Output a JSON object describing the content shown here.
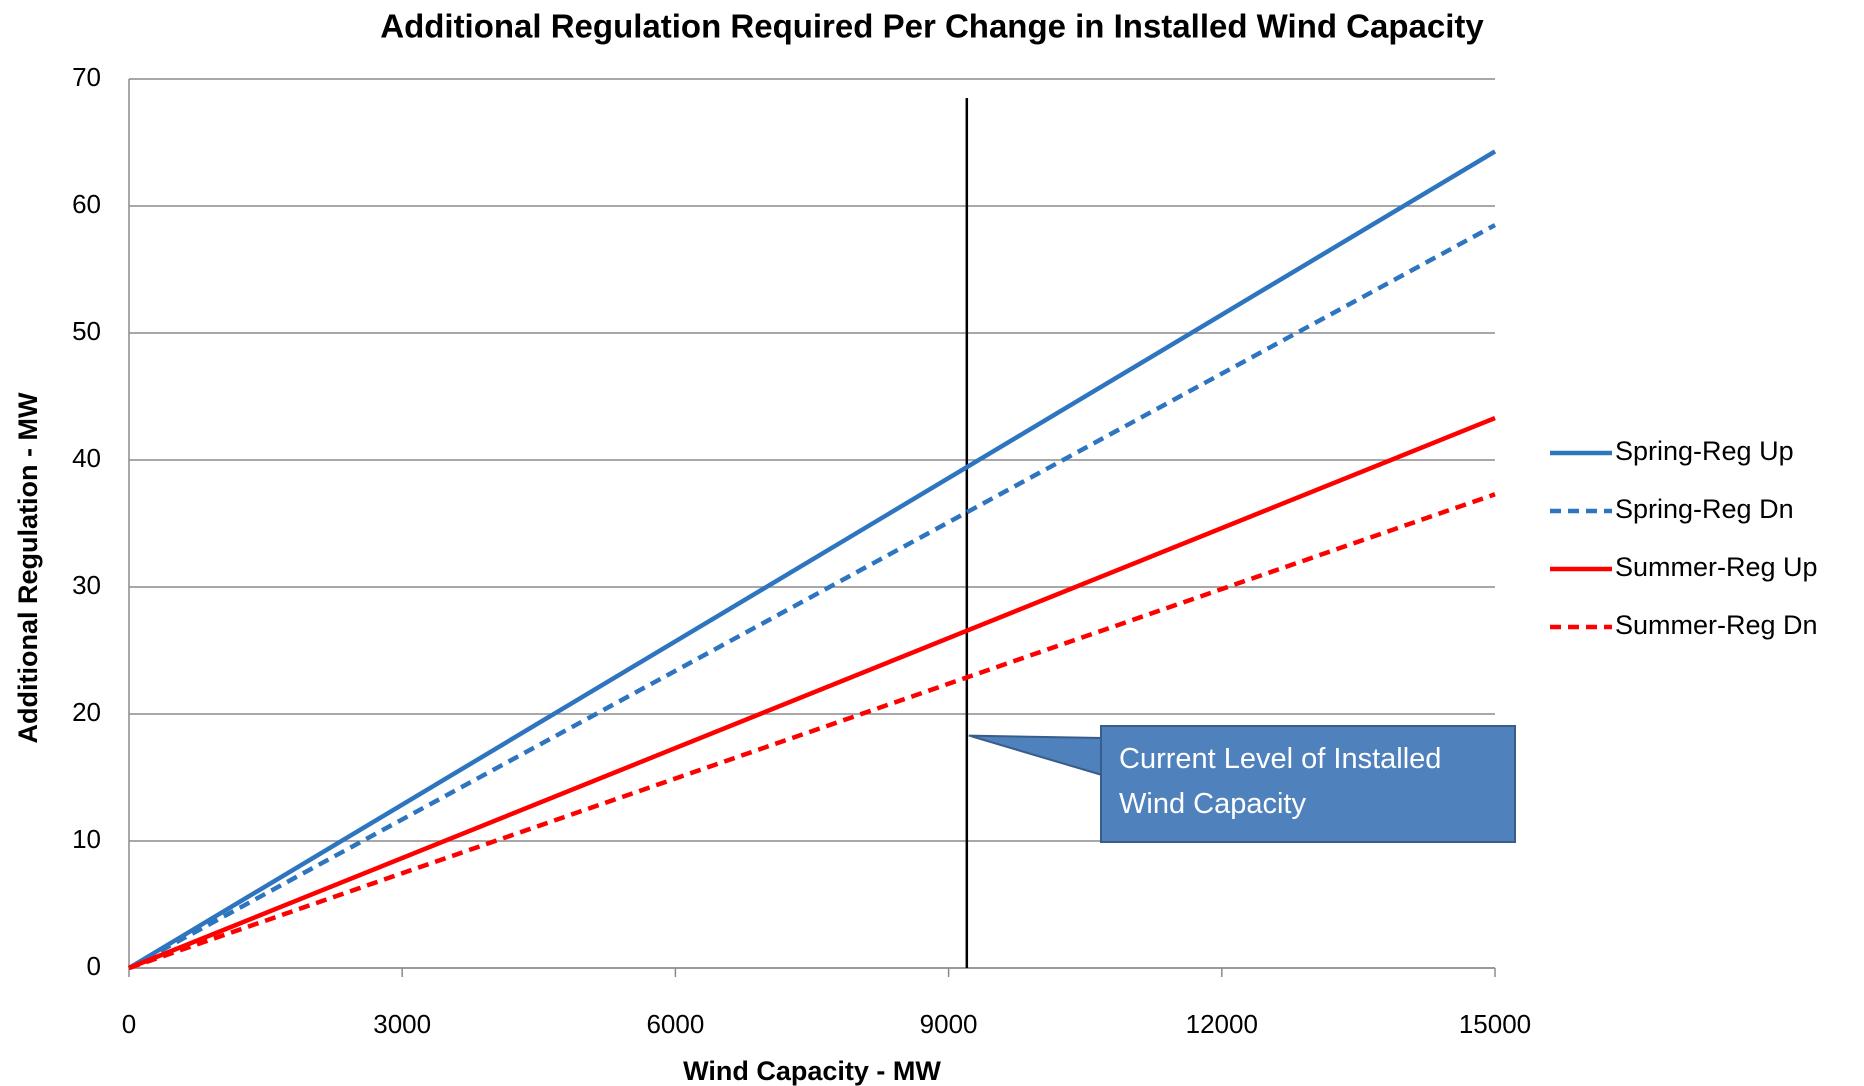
{
  "chart_data": {
    "type": "line",
    "title": "Additional Regulation Required Per Change in Installed Wind Capacity",
    "x_label": "Wind Capacity - MW",
    "y_label": "Additional Regulation - MW",
    "x": [
      0,
      15000
    ],
    "series": [
      {
        "name": "Spring-Reg Up",
        "color": "#2e75c0",
        "dashed": false,
        "values": [
          0,
          64.3
        ]
      },
      {
        "name": "Spring-Reg Dn",
        "color": "#2e75c0",
        "dashed": true,
        "values": [
          0,
          58.5
        ]
      },
      {
        "name": "Summer-Reg Up",
        "color": "#ff0000",
        "dashed": false,
        "values": [
          0,
          43.3
        ]
      },
      {
        "name": "Summer-Reg Dn",
        "color": "#ff0000",
        "dashed": true,
        "values": [
          0,
          37.3
        ]
      }
    ],
    "xlim": [
      0,
      15000
    ],
    "xticks": [
      0,
      3000,
      6000,
      9000,
      12000,
      15000
    ],
    "ylim": [
      0,
      70
    ],
    "yticks": [
      0,
      10,
      20,
      30,
      40,
      50,
      60,
      70
    ],
    "grid": true,
    "legend": "right",
    "vline": {
      "x": 9200,
      "y": [
        0,
        68.5
      ]
    },
    "annotation": {
      "text": "Current Level of Installed Wind Capacity",
      "x": 9200,
      "y": 18.3
    }
  }
}
